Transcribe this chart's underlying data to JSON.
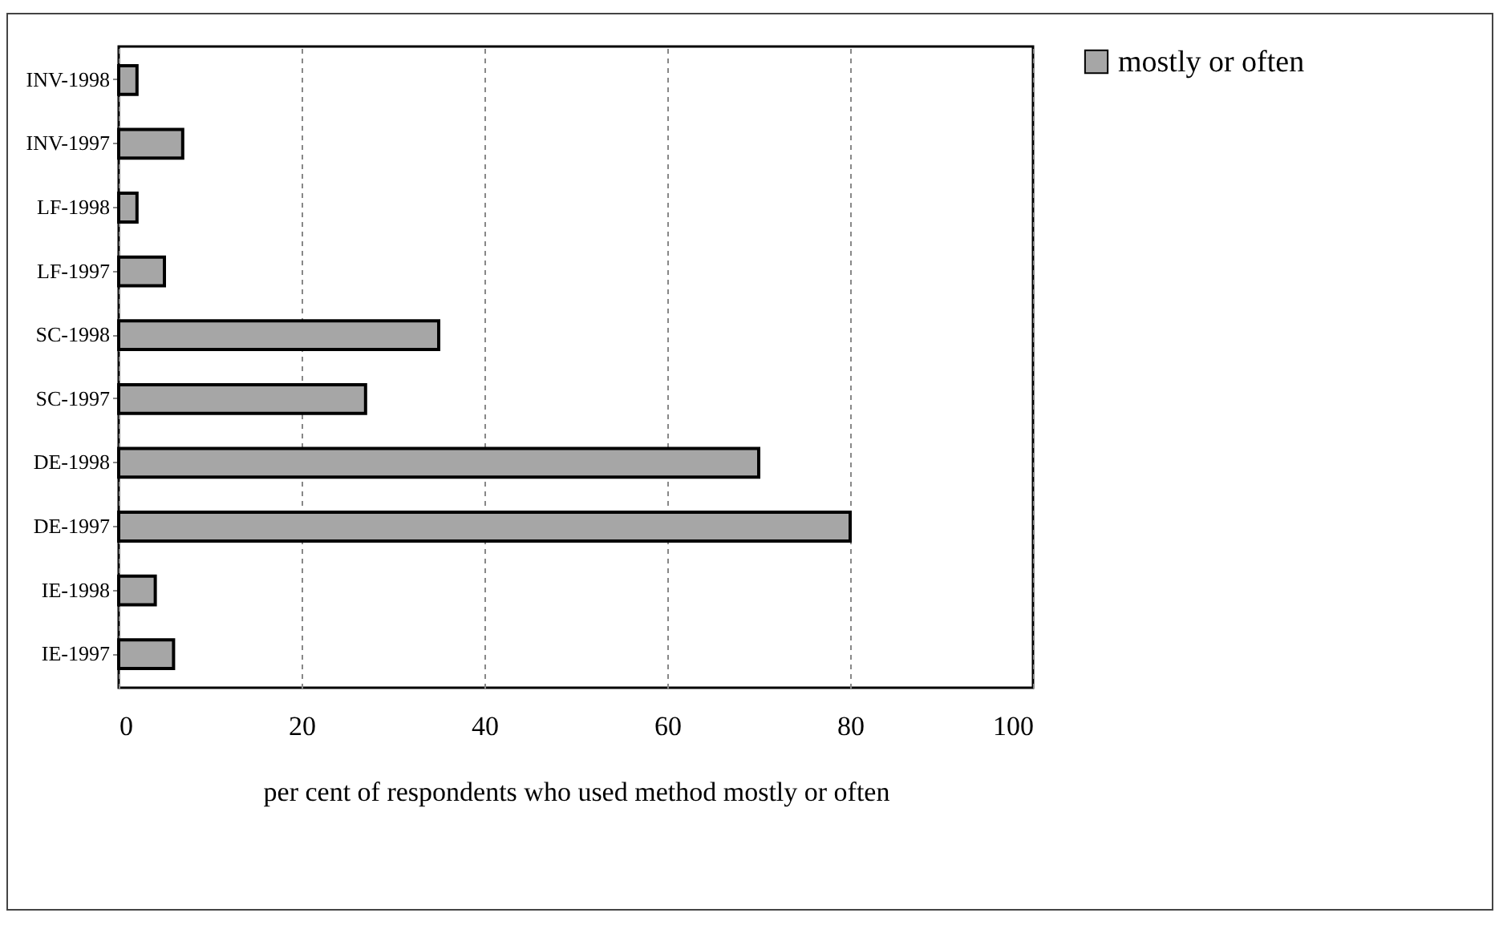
{
  "chart_data": {
    "type": "bar",
    "orientation": "horizontal",
    "categories": [
      "INV-1998",
      "INV-1997",
      "LF-1998",
      "LF-1997",
      "SC-1998",
      "SC-1997",
      "DE-1998",
      "DE-1997",
      "IE-1998",
      "IE-1997"
    ],
    "series": [
      {
        "name": "mostly or often",
        "color": "#a6a6a6",
        "values": [
          2,
          7,
          2,
          5,
          35,
          27,
          70,
          80,
          4,
          6
        ]
      }
    ],
    "xlabel": "per cent of respondents who used method mostly or often",
    "xlim": [
      0,
      100
    ],
    "xticks": [
      0,
      20,
      40,
      60,
      80,
      100
    ],
    "grid": "x",
    "legend": "right"
  }
}
